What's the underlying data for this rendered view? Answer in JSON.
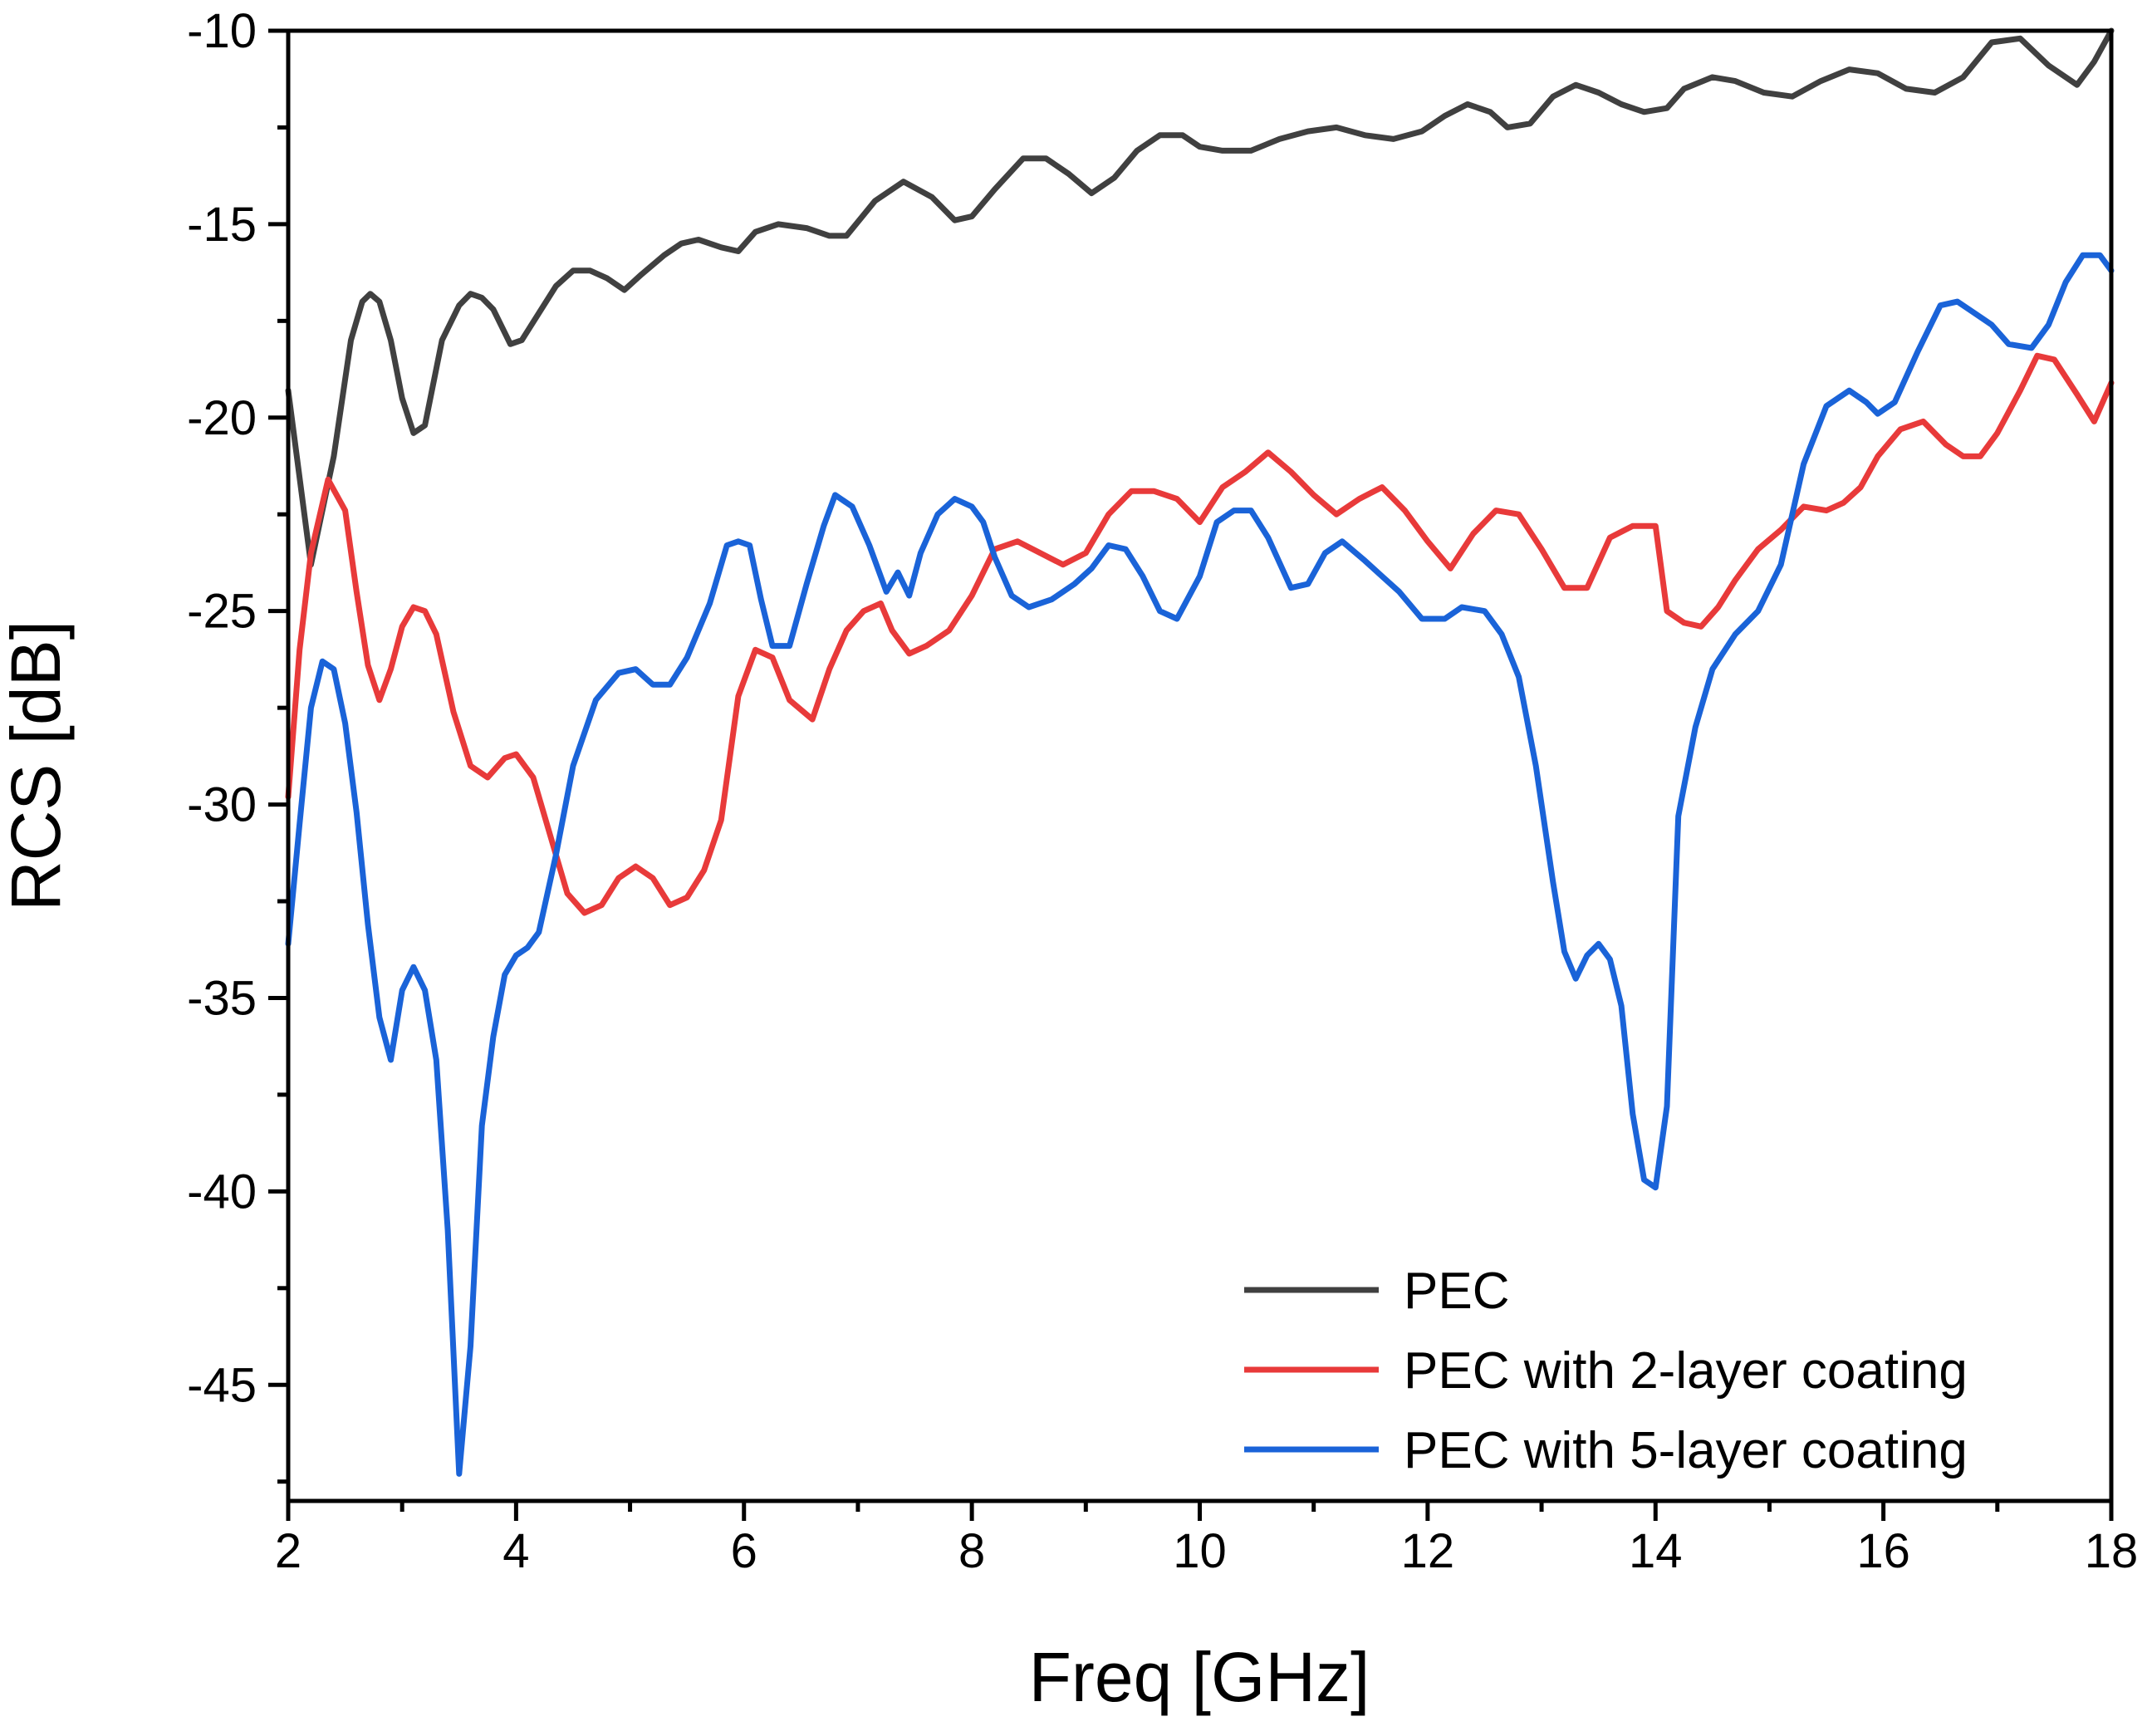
{
  "chart_data": {
    "type": "line",
    "xlabel": "Freq [GHz]",
    "ylabel": "RCS [dB]",
    "xlim": [
      2,
      18
    ],
    "ylim": [
      -48.0,
      -10
    ],
    "xticks": [
      2,
      4,
      6,
      8,
      10,
      12,
      14,
      16,
      18
    ],
    "yticks": [
      -45,
      -40,
      -35,
      -30,
      -25,
      -20,
      -15,
      -10
    ],
    "xtick_labels": [
      "2",
      "4",
      "6",
      "8",
      "10",
      "12",
      "14",
      "16",
      "18"
    ],
    "ytick_labels": [
      "-45",
      "-40",
      "-35",
      "-30",
      "-25",
      "-20",
      "-15",
      "-10"
    ],
    "grid": false,
    "legend_position": "bottom-right",
    "series": [
      {
        "name": "PEC",
        "color": "#404040",
        "x": [
          2.0,
          2.2,
          2.4,
          2.55,
          2.65,
          2.72,
          2.8,
          2.9,
          3.0,
          3.1,
          3.2,
          3.35,
          3.5,
          3.6,
          3.7,
          3.8,
          3.95,
          4.05,
          4.2,
          4.35,
          4.5,
          4.65,
          4.8,
          4.95,
          5.1,
          5.3,
          5.45,
          5.6,
          5.8,
          5.95,
          6.1,
          6.3,
          6.55,
          6.75,
          6.9,
          7.15,
          7.4,
          7.65,
          7.85,
          8.0,
          8.2,
          8.45,
          8.65,
          8.85,
          9.05,
          9.25,
          9.45,
          9.65,
          9.85,
          10.0,
          10.2,
          10.45,
          10.7,
          10.95,
          11.2,
          11.45,
          11.7,
          11.95,
          12.15,
          12.35,
          12.55,
          12.7,
          12.9,
          13.1,
          13.3,
          13.5,
          13.7,
          13.9,
          14.1,
          14.25,
          14.5,
          14.7,
          14.95,
          15.2,
          15.45,
          15.7,
          15.95,
          16.2,
          16.45,
          16.7,
          16.95,
          17.2,
          17.45,
          17.7,
          17.85,
          18.0
        ],
        "values": [
          -19.3,
          -23.8,
          -21.0,
          -18.0,
          -17.0,
          -16.8,
          -17.0,
          -18.0,
          -19.5,
          -20.4,
          -20.2,
          -18.0,
          -17.1,
          -16.8,
          -16.9,
          -17.2,
          -18.1,
          -18.0,
          -17.3,
          -16.6,
          -16.2,
          -16.2,
          -16.4,
          -16.7,
          -16.3,
          -15.8,
          -15.5,
          -15.4,
          -15.6,
          -15.7,
          -15.2,
          -15.0,
          -15.1,
          -15.3,
          -15.3,
          -14.4,
          -13.9,
          -14.3,
          -14.9,
          -14.8,
          -14.1,
          -13.3,
          -13.3,
          -13.7,
          -14.2,
          -13.8,
          -13.1,
          -12.7,
          -12.7,
          -13.0,
          -13.1,
          -13.1,
          -12.8,
          -12.6,
          -12.5,
          -12.7,
          -12.8,
          -12.6,
          -12.2,
          -11.9,
          -12.1,
          -12.5,
          -12.4,
          -11.7,
          -11.4,
          -11.6,
          -11.9,
          -12.1,
          -12.0,
          -11.5,
          -11.2,
          -11.3,
          -11.6,
          -11.7,
          -11.3,
          -11.0,
          -11.1,
          -11.5,
          -11.6,
          -11.2,
          -10.3,
          -10.2,
          -10.9,
          -11.4,
          -10.8,
          -10.0
        ]
      },
      {
        "name": "PEC with 2-layer coating",
        "color": "#e83a3a",
        "x": [
          2.0,
          2.1,
          2.2,
          2.35,
          2.5,
          2.6,
          2.7,
          2.8,
          2.9,
          3.0,
          3.1,
          3.2,
          3.3,
          3.45,
          3.6,
          3.75,
          3.9,
          4.0,
          4.15,
          4.3,
          4.45,
          4.6,
          4.75,
          4.9,
          5.05,
          5.2,
          5.35,
          5.5,
          5.65,
          5.8,
          5.95,
          6.1,
          6.25,
          6.4,
          6.6,
          6.75,
          6.9,
          7.05,
          7.2,
          7.3,
          7.45,
          7.6,
          7.8,
          8.0,
          8.2,
          8.4,
          8.6,
          8.8,
          9.0,
          9.2,
          9.4,
          9.6,
          9.8,
          10.0,
          10.2,
          10.4,
          10.6,
          10.8,
          11.0,
          11.2,
          11.4,
          11.6,
          11.8,
          12.0,
          12.2,
          12.4,
          12.6,
          12.8,
          13.0,
          13.2,
          13.4,
          13.6,
          13.8,
          14.0,
          14.1,
          14.25,
          14.4,
          14.55,
          14.7,
          14.9,
          15.1,
          15.3,
          15.5,
          15.65,
          15.8,
          15.95,
          16.15,
          16.35,
          16.55,
          16.7,
          16.85,
          17.0,
          17.2,
          17.35,
          17.5,
          17.7,
          17.85,
          18.0
        ],
        "values": [
          -29.8,
          -26.0,
          -23.5,
          -21.6,
          -22.4,
          -24.5,
          -26.4,
          -27.3,
          -26.5,
          -25.4,
          -24.9,
          -25.0,
          -25.6,
          -27.6,
          -29.0,
          -29.3,
          -28.8,
          -28.7,
          -29.3,
          -30.8,
          -32.3,
          -32.8,
          -32.6,
          -31.9,
          -31.6,
          -31.9,
          -32.6,
          -32.4,
          -31.7,
          -30.4,
          -27.2,
          -26.0,
          -26.2,
          -27.3,
          -27.8,
          -26.5,
          -25.5,
          -25.0,
          -24.8,
          -25.5,
          -26.1,
          -25.9,
          -25.5,
          -24.6,
          -23.4,
          -23.2,
          -23.5,
          -23.8,
          -23.5,
          -22.5,
          -21.9,
          -21.9,
          -22.1,
          -22.7,
          -21.8,
          -21.4,
          -20.9,
          -21.4,
          -22.0,
          -22.5,
          -22.1,
          -21.8,
          -22.4,
          -23.2,
          -23.9,
          -23.0,
          -22.4,
          -22.5,
          -23.4,
          -24.4,
          -24.4,
          -23.1,
          -22.8,
          -22.8,
          -25.0,
          -25.3,
          -25.4,
          -24.9,
          -24.2,
          -23.4,
          -22.9,
          -22.3,
          -22.4,
          -22.2,
          -21.8,
          -21.0,
          -20.3,
          -20.1,
          -20.7,
          -21.0,
          -21.0,
          -20.4,
          -19.3,
          -18.4,
          -18.5,
          -19.4,
          -20.1,
          -19.1
        ]
      },
      {
        "name": "PEC with 5-layer coating",
        "color": "#1a63d8",
        "x": [
          2.0,
          2.1,
          2.2,
          2.3,
          2.4,
          2.5,
          2.6,
          2.7,
          2.8,
          2.9,
          3.0,
          3.1,
          3.2,
          3.3,
          3.4,
          3.5,
          3.6,
          3.7,
          3.8,
          3.9,
          4.0,
          4.1,
          4.2,
          4.35,
          4.5,
          4.7,
          4.9,
          5.05,
          5.2,
          5.35,
          5.5,
          5.7,
          5.85,
          5.95,
          6.05,
          6.15,
          6.25,
          6.4,
          6.55,
          6.7,
          6.8,
          6.95,
          7.1,
          7.25,
          7.35,
          7.45,
          7.55,
          7.7,
          7.85,
          8.0,
          8.1,
          8.2,
          8.35,
          8.5,
          8.7,
          8.9,
          9.05,
          9.2,
          9.35,
          9.5,
          9.65,
          9.8,
          10.0,
          10.15,
          10.3,
          10.45,
          10.6,
          10.8,
          10.95,
          11.1,
          11.25,
          11.45,
          11.6,
          11.75,
          11.95,
          12.15,
          12.3,
          12.5,
          12.65,
          12.8,
          12.95,
          13.1,
          13.2,
          13.3,
          13.4,
          13.5,
          13.6,
          13.7,
          13.8,
          13.9,
          14.0,
          14.1,
          14.2,
          14.35,
          14.5,
          14.7,
          14.9,
          15.1,
          15.3,
          15.5,
          15.7,
          15.85,
          15.95,
          16.1,
          16.3,
          16.5,
          16.65,
          16.8,
          16.95,
          17.1,
          17.3,
          17.45,
          17.6,
          17.75,
          17.9,
          18.0
        ],
        "values": [
          -33.6,
          -30.5,
          -27.5,
          -26.3,
          -26.5,
          -27.9,
          -30.2,
          -33.1,
          -35.5,
          -36.6,
          -34.8,
          -34.2,
          -34.8,
          -36.6,
          -41.0,
          -47.3,
          -44.0,
          -38.3,
          -36.0,
          -34.4,
          -33.9,
          -33.7,
          -33.3,
          -31.3,
          -29.0,
          -27.3,
          -26.6,
          -26.5,
          -26.9,
          -26.9,
          -26.2,
          -24.8,
          -23.3,
          -23.2,
          -23.3,
          -24.7,
          -25.9,
          -25.9,
          -24.3,
          -22.8,
          -22.0,
          -22.3,
          -23.3,
          -24.5,
          -24.0,
          -24.6,
          -23.5,
          -22.5,
          -22.1,
          -22.3,
          -22.7,
          -23.6,
          -24.6,
          -24.9,
          -24.7,
          -24.3,
          -23.9,
          -23.3,
          -23.4,
          -24.1,
          -25.0,
          -25.2,
          -24.1,
          -22.7,
          -22.4,
          -22.4,
          -23.1,
          -24.4,
          -24.3,
          -23.5,
          -23.2,
          -23.7,
          -24.1,
          -24.5,
          -25.2,
          -25.2,
          -24.9,
          -25.0,
          -25.6,
          -26.7,
          -29.0,
          -32.0,
          -33.8,
          -34.5,
          -33.9,
          -33.6,
          -34.0,
          -35.2,
          -38.0,
          -39.7,
          -39.9,
          -37.8,
          -30.3,
          -28.0,
          -26.5,
          -25.6,
          -25.0,
          -23.8,
          -21.2,
          -19.7,
          -19.3,
          -19.6,
          -19.9,
          -19.6,
          -18.3,
          -17.1,
          -17.0,
          -17.3,
          -17.6,
          -18.1,
          -18.2,
          -17.6,
          -16.5,
          -15.8,
          -15.8,
          -16.2
        ]
      }
    ]
  }
}
